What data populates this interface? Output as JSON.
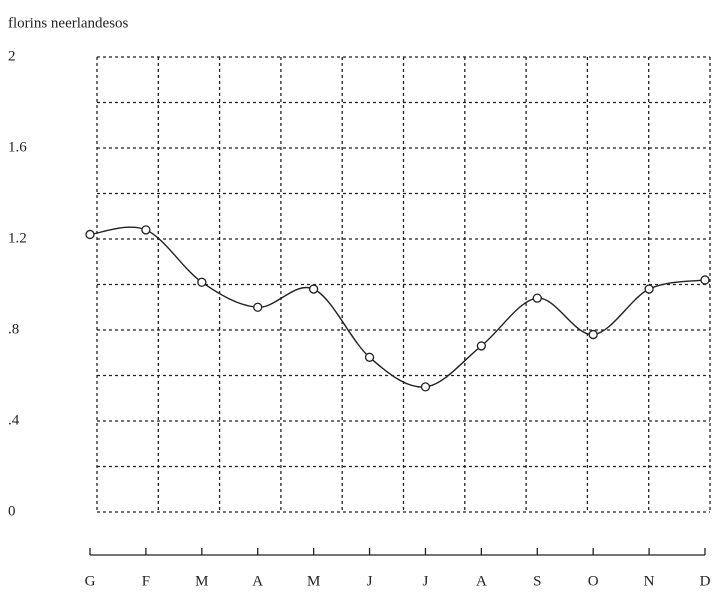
{
  "chart_data": {
    "type": "line",
    "ylabel": "florins neerlandesos",
    "categories": [
      "G",
      "F",
      "M",
      "A",
      "M",
      "J",
      "J",
      "A",
      "S",
      "O",
      "N",
      "D"
    ],
    "series": [
      {
        "name": "florins neerlandesos",
        "color": "#222222",
        "values": [
          1.22,
          1.24,
          1.01,
          0.9,
          0.98,
          0.68,
          0.55,
          0.73,
          0.94,
          0.78,
          0.98,
          1.02
        ]
      }
    ],
    "ylim": [
      0,
      2
    ],
    "yticks": [
      0,
      {
        "value": 0.4,
        "label": ".4"
      },
      {
        "value": 0.8,
        "label": ".8"
      },
      1.2,
      1.6,
      2
    ],
    "minor_yticks": [
      0.2,
      0.6,
      1.0,
      1.4,
      1.8
    ],
    "grid": true
  }
}
